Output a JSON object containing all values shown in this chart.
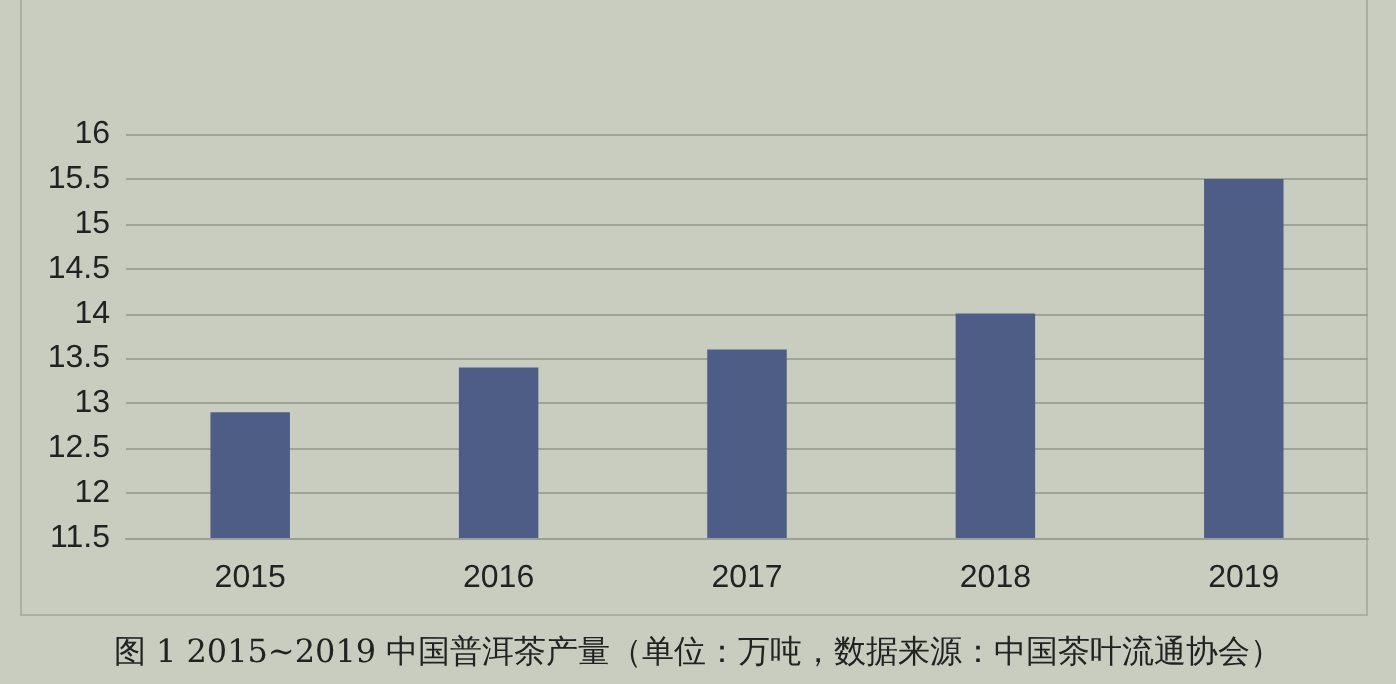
{
  "chart_data": {
    "type": "bar",
    "categories": [
      "2015",
      "2016",
      "2017",
      "2018",
      "2019"
    ],
    "values": [
      12.9,
      13.4,
      13.6,
      14.0,
      15.5
    ],
    "color": "#4e5d85",
    "ylim": [
      11.5,
      16
    ],
    "yticks": [
      11.5,
      12,
      12.5,
      13,
      13.5,
      14,
      14.5,
      15,
      15.5,
      16
    ],
    "grid": "y",
    "annotations": [
      "图 1 2015~2019 中国普洱茶产量（单位：万吨，数据来源：中国茶叶流通协会）"
    ]
  }
}
